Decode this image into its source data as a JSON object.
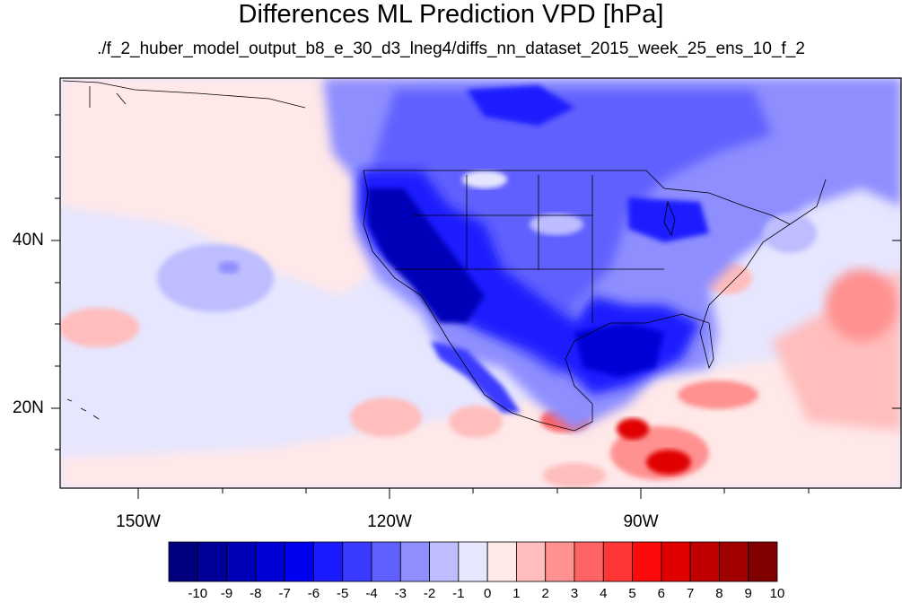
{
  "title": "Differences ML Prediction VPD [hPa]",
  "subtitle": "./f_2_huber_model_output_b8_e_30_d3_lneg4/diffs_nn_dataset_2015_week_25_ens_10_f_2",
  "map": {
    "lon_range": [
      -160,
      -95
    ],
    "lat_range": [
      10,
      58
    ],
    "lat_labels": [
      {
        "lat": 40,
        "text": "40N"
      },
      {
        "lat": 20,
        "text": "20N"
      }
    ],
    "lon_labels": [
      {
        "lon": -150,
        "text": "150W"
      },
      {
        "lon": -120,
        "text": "120W"
      },
      {
        "lon": -90,
        "text": "90W"
      }
    ]
  },
  "colorbar": {
    "labels": [
      "-10",
      "-9",
      "-8",
      "-7",
      "-6",
      "-5",
      "-4",
      "-3",
      "-2",
      "-1",
      "0",
      "1",
      "2",
      "3",
      "4",
      "5",
      "6",
      "7",
      "8",
      "9",
      "10"
    ],
    "colors": [
      "#00007f",
      "#000099",
      "#0000b8",
      "#0000d6",
      "#0000f0",
      "#1a1aff",
      "#3a3aff",
      "#6060ff",
      "#8e8eff",
      "#bdbdff",
      "#e6e6ff",
      "#ffe8e8",
      "#ffbdbd",
      "#ff9191",
      "#ff6464",
      "#ff3636",
      "#ff0a0a",
      "#e00000",
      "#c00000",
      "#a00000",
      "#800000"
    ]
  },
  "colors": {
    "ocean_light": "#ffe8e8",
    "land_blue": "#3a3aff",
    "deep_blue": "#0000b8"
  }
}
